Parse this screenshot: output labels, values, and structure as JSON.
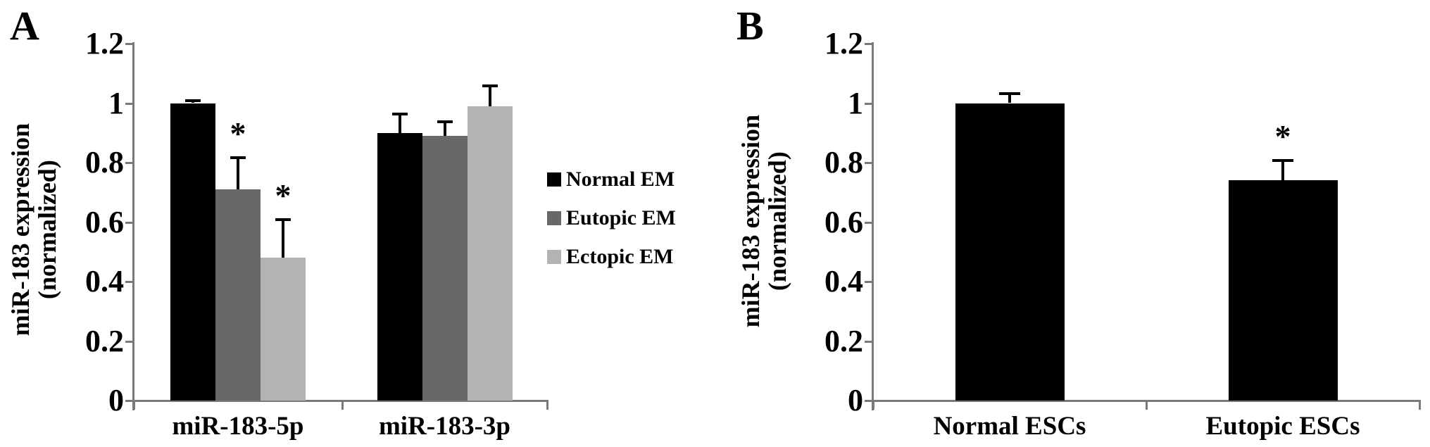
{
  "figure": {
    "background": "#ffffff",
    "panels": [
      {
        "letter": "A"
      },
      {
        "letter": "B"
      }
    ]
  },
  "chart_data": [
    {
      "type": "bar",
      "panel_letter": "A",
      "title": "",
      "ylabel_lines": [
        "miR-183 expression",
        "(normalized)"
      ],
      "xlabel": "",
      "categories": [
        "miR-183-5p",
        "miR-183-3p"
      ],
      "series": [
        {
          "name": "Normal EM",
          "color": "#000000",
          "values": [
            1.0,
            0.9
          ],
          "errors_plus": [
            0.01,
            0.065
          ]
        },
        {
          "name": "Eutopic EM",
          "color": "#686868",
          "values": [
            0.71,
            0.89
          ],
          "errors_plus": [
            0.11,
            0.05
          ]
        },
        {
          "name": "Ectopic EM",
          "color": "#b3b3b3",
          "values": [
            0.48,
            0.99
          ],
          "errors_plus": [
            0.13,
            0.07
          ]
        }
      ],
      "significance_markers": [
        {
          "symbol": "*",
          "category_index": 0,
          "series_index": 1
        },
        {
          "symbol": "*",
          "category_index": 0,
          "series_index": 2
        }
      ],
      "ylim": [
        0,
        1.2
      ],
      "yticks": [
        {
          "value": 0,
          "label": "0"
        },
        {
          "value": 0.2,
          "label": "0.2"
        },
        {
          "value": 0.4,
          "label": "0.4"
        },
        {
          "value": 0.6,
          "label": "0.6"
        },
        {
          "value": 0.8,
          "label": "0.8"
        },
        {
          "value": 1,
          "label": "1"
        },
        {
          "value": 1.2,
          "label": "1.2"
        }
      ],
      "grid": false,
      "legend": {
        "visible": true,
        "position": "right-of-plot",
        "entries": [
          "Normal EM",
          "Eutopic EM",
          "Ectopic EM"
        ]
      }
    },
    {
      "type": "bar",
      "panel_letter": "B",
      "title": "",
      "ylabel_lines": [
        "miR-183 expression",
        "(normalized)"
      ],
      "xlabel": "",
      "categories": [
        "Normal ESCs",
        "Eutopic ESCs"
      ],
      "series": [
        {
          "name": "",
          "color": "#000000",
          "values": [
            1.0,
            0.74
          ],
          "errors_plus": [
            0.035,
            0.07
          ]
        }
      ],
      "significance_markers": [
        {
          "symbol": "*",
          "category_index": 1,
          "series_index": 0
        }
      ],
      "ylim": [
        0,
        1.2
      ],
      "yticks": [
        {
          "value": 0,
          "label": "0"
        },
        {
          "value": 0.2,
          "label": "0.2"
        },
        {
          "value": 0.4,
          "label": "0.4"
        },
        {
          "value": 0.6,
          "label": "0.6"
        },
        {
          "value": 0.8,
          "label": "0.8"
        },
        {
          "value": 1,
          "label": "1"
        },
        {
          "value": 1.2,
          "label": "1.2"
        }
      ],
      "grid": false,
      "legend": {
        "visible": false
      }
    }
  ]
}
